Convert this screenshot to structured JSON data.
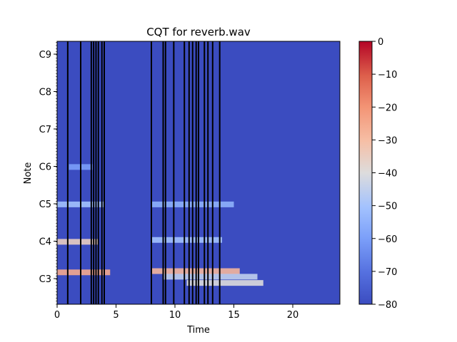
{
  "chart_data": {
    "type": "heatmap",
    "title": "CQT for reverb.wav",
    "xlabel": "Time",
    "ylabel": "Note",
    "xlim": [
      0,
      24
    ],
    "x_ticks": [
      0,
      5,
      10,
      15,
      20
    ],
    "y_ticks": [
      "C3",
      "C4",
      "C5",
      "C6",
      "C7",
      "C8",
      "C9"
    ],
    "colorbar": {
      "colormap": "coolwarm",
      "min": -80,
      "max": 0,
      "ticks": [
        0,
        -10,
        -20,
        -30,
        -40,
        -50,
        -60,
        -70,
        -80
      ]
    },
    "background_value": -80,
    "onset_lines": [
      0.9,
      2.0,
      2.9,
      3.1,
      3.3,
      3.5,
      3.8,
      4.0,
      8.0,
      9.0,
      9.2,
      9.9,
      10.8,
      11.2,
      11.5,
      11.8,
      12.0,
      12.5,
      12.8,
      13.2,
      13.8
    ],
    "energy_bands": [
      {
        "note": "C3",
        "note_offset": 1.0,
        "start": 0,
        "end": 4.5,
        "value": -25
      },
      {
        "note": "C3",
        "note_offset": 1.2,
        "start": 8,
        "end": 15.5,
        "value": -28
      },
      {
        "note": "C3",
        "note_offset": 0.3,
        "start": 9,
        "end": 17,
        "value": -45
      },
      {
        "note": "C3",
        "note_offset": -0.7,
        "start": 11,
        "end": 17.5,
        "value": -40
      },
      {
        "note": "C4",
        "note_offset": -0.1,
        "start": 0,
        "end": 3.5,
        "value": -35
      },
      {
        "note": "C4",
        "note_offset": 0.2,
        "start": 8,
        "end": 14,
        "value": -50
      },
      {
        "note": "C5",
        "note_offset": -0.1,
        "start": 0,
        "end": 4,
        "value": -50
      },
      {
        "note": "C5",
        "note_offset": -0.1,
        "start": 8,
        "end": 15,
        "value": -55
      },
      {
        "note": "C6",
        "note_offset": -0.1,
        "start": 1,
        "end": 3,
        "value": -60
      }
    ]
  }
}
